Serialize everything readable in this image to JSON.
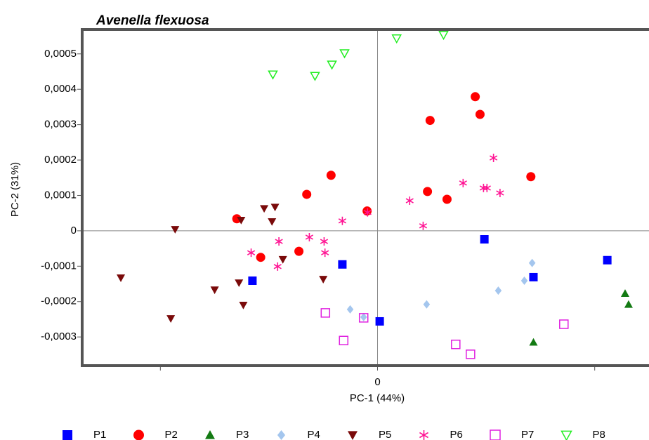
{
  "chart_data": {
    "type": "scatter",
    "title": "Avenella flexuosa",
    "x_label": "PC-1 (44%)",
    "y_label": "PC-2 (31%)",
    "xlim": [
      -0.00068,
      0.000625
    ],
    "ylim": [
      -0.000381,
      0.000569
    ],
    "xticks": [
      {
        "value": -0.0005,
        "label": null
      },
      0,
      {
        "value": 0.0005,
        "label": null
      }
    ],
    "yticks": [
      {
        "value": 0.0005,
        "label": "0,0005"
      },
      {
        "value": 0.0004,
        "label": "0,0004"
      },
      {
        "value": 0.0003,
        "label": "0,0003"
      },
      {
        "value": 0.0002,
        "label": "0,0002"
      },
      {
        "value": 0.0001,
        "label": "0,0001"
      },
      0,
      {
        "value": -0.0001,
        "label": "-0,0001"
      },
      {
        "value": -0.0002,
        "label": "-0,0002"
      },
      {
        "value": -0.0003,
        "label": "-0,0003"
      }
    ],
    "zero_lines": true,
    "legend": "bottom",
    "series": [
      {
        "name": "P1",
        "color": "#0000ff",
        "marker": "square",
        "x": [
          -0.000288,
          -8.1e-05,
          5e-06,
          0.000246,
          0.000359,
          0.000529
        ],
        "values": [
          -0.000141,
          -9.5e-05,
          -0.000256,
          -2.4e-05,
          -0.000131,
          -8.3e-05
        ]
      },
      {
        "name": "P2",
        "color": "#ff0000",
        "marker": "circle",
        "x": [
          -0.000324,
          -0.000269,
          -0.000181,
          -0.000163,
          -0.000107,
          -2.4e-05,
          0.000121,
          0.000115,
          0.00016,
          0.000225,
          0.000236,
          0.000353
        ],
        "values": [
          3.4e-05,
          -7.5e-05,
          -5.8e-05,
          0.000103,
          0.000157,
          5.6e-05,
          0.000312,
          0.000111,
          8.9e-05,
          0.000379,
          0.000329,
          0.000153
        ]
      },
      {
        "name": "P3",
        "color": "#137a13",
        "marker": "triangle-up",
        "x": [
          0.000359,
          0.00057,
          0.000578
        ],
        "values": [
          -0.000315,
          -0.000177,
          -0.000208
        ]
      },
      {
        "name": "P4",
        "color": "#a4c6ee",
        "marker": "diamond",
        "x": [
          -6.3e-05,
          -3.2e-05,
          0.000113,
          0.000278,
          0.000338,
          0.000356
        ],
        "values": [
          -0.000222,
          -0.000244,
          -0.000208,
          -0.000169,
          -0.000141,
          -9.1e-05
        ]
      },
      {
        "name": "P5",
        "color": "#7a0a0a",
        "marker": "triangle-down",
        "x": [
          -0.000466,
          -0.000591,
          -0.000476,
          -0.000375,
          -0.000319,
          -0.000309,
          -0.000314,
          -0.000261,
          -0.000236,
          -0.000243,
          -0.000218,
          -0.000125
        ],
        "values": [
          4e-06,
          -0.000133,
          -0.000248,
          -0.000167,
          -0.000147,
          -0.00021,
          3e-05,
          6.3e-05,
          6.7e-05,
          2.6e-05,
          -8.1e-05,
          -0.000137
        ]
      },
      {
        "name": "P6",
        "color": "#ff1493",
        "marker": "asterisk",
        "x": [
          -0.000291,
          -0.000227,
          -0.00023,
          -0.000157,
          -0.000123,
          -0.000121,
          -8.1e-05,
          -2.3e-05,
          7.4e-05,
          0.000105,
          0.000197,
          0.000244,
          0.000252,
          0.000267,
          0.000282
        ],
        "values": [
          -6.2e-05,
          -3e-05,
          -0.000101,
          -1.8e-05,
          -3e-05,
          -6.2e-05,
          2.8e-05,
          5.2e-05,
          8.5e-05,
          1.4e-05,
          0.000135,
          0.000121,
          0.000121,
          0.000206,
          0.000107
        ]
      },
      {
        "name": "P7",
        "color": "#e020e0",
        "marker": "square-open",
        "x": [
          -0.00012,
          -7.8e-05,
          -3.2e-05,
          0.00018,
          0.000214,
          0.000429
        ],
        "values": [
          -0.000232,
          -0.00031,
          -0.000246,
          -0.000321,
          -0.000349,
          -0.000264
        ]
      },
      {
        "name": "P8",
        "color": "#22ee22",
        "marker": "triangle-down-open",
        "x": [
          -0.000241,
          -0.000144,
          -0.000105,
          -7.6e-05,
          4.4e-05,
          0.000152
        ],
        "values": [
          0.000442,
          0.000438,
          0.00047,
          0.000502,
          0.000544,
          0.000554
        ]
      }
    ]
  }
}
